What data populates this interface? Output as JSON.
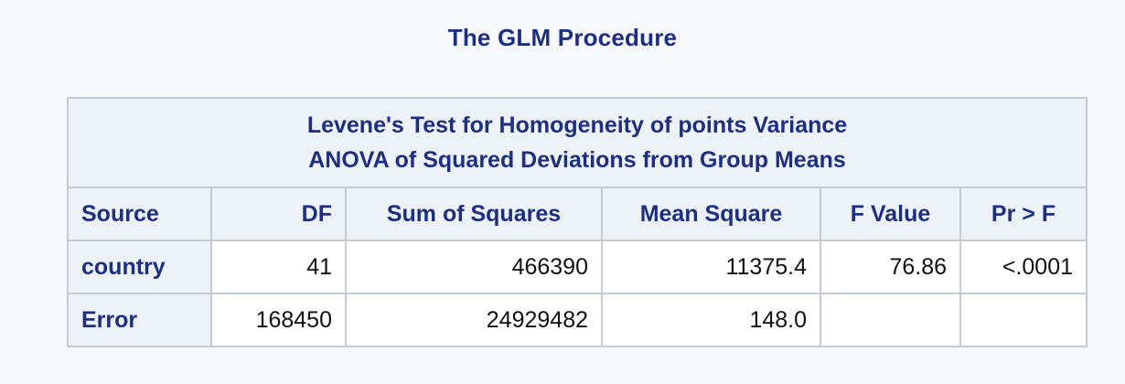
{
  "procedure_title": "The GLM Procedure",
  "table": {
    "caption_line1": "Levene's Test for Homogeneity of points Variance",
    "caption_line2": "ANOVA of Squared Deviations from Group Means",
    "headers": [
      "Source",
      "DF",
      "Sum of Squares",
      "Mean Square",
      "F Value",
      "Pr > F"
    ],
    "rows": [
      {
        "source": "country",
        "df": "41",
        "ss": "466390",
        "ms": "11375.4",
        "f": "76.86",
        "p": "<.0001"
      },
      {
        "source": "Error",
        "df": "168450",
        "ss": "24929482",
        "ms": "148.0",
        "f": "",
        "p": ""
      }
    ]
  },
  "colors": {
    "header_text": "#1f2f80",
    "header_bg": "#edf2f9",
    "border": "#c4c9d2",
    "page_bg": "#f7f9fc"
  }
}
